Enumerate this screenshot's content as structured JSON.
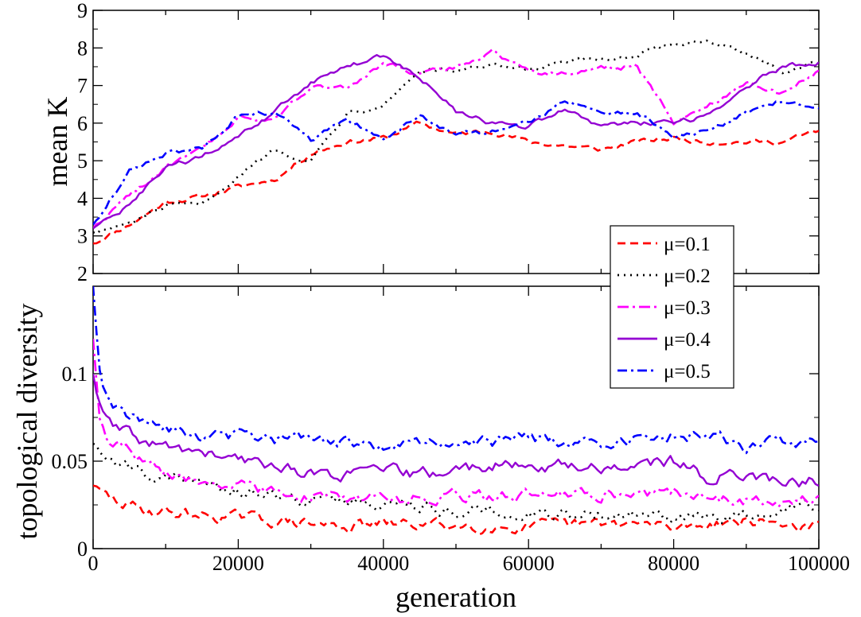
{
  "chart_data": [
    {
      "type": "line",
      "panel": "top",
      "title": "",
      "xlabel": "",
      "ylabel": "mean K",
      "xlim": [
        0,
        100000
      ],
      "ylim": [
        2,
        9
      ],
      "x_ticks": [
        0,
        20000,
        40000,
        60000,
        80000,
        100000
      ],
      "y_ticks": [
        2,
        3,
        4,
        5,
        6,
        7,
        8,
        9
      ],
      "y_tick_labels": [
        "2",
        "3",
        "4",
        "5",
        "6",
        "7",
        "8",
        "9"
      ],
      "x": [
        0,
        5000,
        10000,
        15000,
        20000,
        25000,
        30000,
        35000,
        40000,
        45000,
        50000,
        55000,
        60000,
        65000,
        70000,
        75000,
        80000,
        85000,
        90000,
        95000,
        100000
      ],
      "series": [
        {
          "name": "μ=0.1",
          "color": "#ff0000",
          "dash": "10,6",
          "values": [
            2.8,
            3.3,
            3.9,
            4.05,
            4.3,
            4.5,
            5.2,
            5.5,
            5.6,
            6.0,
            5.7,
            5.8,
            5.5,
            5.4,
            5.3,
            5.5,
            5.6,
            5.5,
            5.5,
            5.5,
            5.8
          ]
        },
        {
          "name": "μ=0.2",
          "color": "#000000",
          "dash": "2,6",
          "values": [
            3.1,
            3.3,
            3.8,
            3.8,
            4.6,
            5.3,
            5.0,
            6.3,
            6.5,
            7.4,
            7.4,
            7.5,
            7.4,
            7.6,
            7.7,
            7.8,
            8.1,
            8.2,
            7.8,
            7.4,
            7.6
          ]
        },
        {
          "name": "μ=0.3",
          "color": "#ff00ff",
          "dash": "14,5,3,5",
          "values": [
            3.2,
            4.1,
            4.8,
            5.3,
            6.1,
            6.1,
            7.0,
            6.9,
            7.6,
            7.3,
            7.5,
            7.9,
            7.4,
            7.3,
            7.5,
            7.5,
            6.0,
            6.5,
            7.1,
            6.8,
            7.4
          ]
        },
        {
          "name": "μ=0.4",
          "color": "#9400d3",
          "dash": "",
          "values": [
            3.2,
            3.8,
            4.8,
            5.1,
            5.6,
            6.3,
            7.1,
            7.5,
            7.8,
            7.2,
            6.3,
            6.0,
            5.9,
            6.4,
            5.9,
            6.0,
            6.0,
            6.2,
            7.0,
            7.5,
            7.6
          ]
        },
        {
          "name": "μ=0.5",
          "color": "#0000ff",
          "dash": "12,5,3,5",
          "values": [
            3.3,
            4.7,
            5.2,
            5.3,
            6.2,
            6.3,
            5.5,
            6.1,
            5.6,
            6.2,
            5.7,
            5.8,
            6.0,
            6.6,
            6.2,
            6.3,
            5.6,
            5.8,
            6.3,
            6.6,
            6.4
          ]
        }
      ]
    },
    {
      "type": "line",
      "panel": "bottom",
      "title": "",
      "xlabel": "generation",
      "ylabel": "topological diversity",
      "xlim": [
        0,
        100000
      ],
      "ylim": [
        0,
        0.15
      ],
      "x_ticks": [
        0,
        20000,
        40000,
        60000,
        80000,
        100000
      ],
      "x_tick_labels": [
        "0",
        "20000",
        "40000",
        "60000",
        "80000",
        "100000"
      ],
      "y_ticks": [
        0,
        0.05,
        0.1
      ],
      "y_tick_labels": [
        "0",
        "0.05",
        "0.1"
      ],
      "x": [
        0,
        1000,
        2500,
        5000,
        7500,
        10000,
        15000,
        20000,
        25000,
        30000,
        35000,
        40000,
        45000,
        50000,
        55000,
        60000,
        65000,
        70000,
        75000,
        80000,
        85000,
        90000,
        95000,
        100000
      ],
      "series": [
        {
          "name": "μ=0.1",
          "color": "#ff0000",
          "dash": "10,6",
          "values": [
            0.036,
            0.032,
            0.028,
            0.024,
            0.022,
            0.021,
            0.019,
            0.018,
            0.016,
            0.014,
            0.013,
            0.014,
            0.014,
            0.013,
            0.013,
            0.012,
            0.013,
            0.014,
            0.014,
            0.012,
            0.015,
            0.016,
            0.014,
            0.012
          ]
        },
        {
          "name": "μ=0.2",
          "color": "#000000",
          "dash": "2,6",
          "values": [
            0.06,
            0.057,
            0.05,
            0.046,
            0.043,
            0.041,
            0.037,
            0.034,
            0.03,
            0.028,
            0.027,
            0.026,
            0.024,
            0.022,
            0.021,
            0.021,
            0.02,
            0.02,
            0.019,
            0.017,
            0.017,
            0.018,
            0.02,
            0.025
          ]
        },
        {
          "name": "μ=0.3",
          "color": "#ff00ff",
          "dash": "14,5,3,5",
          "values": [
            0.12,
            0.07,
            0.06,
            0.055,
            0.047,
            0.043,
            0.038,
            0.035,
            0.033,
            0.03,
            0.029,
            0.028,
            0.029,
            0.03,
            0.03,
            0.031,
            0.032,
            0.031,
            0.031,
            0.033,
            0.029,
            0.028,
            0.028,
            0.03
          ]
        },
        {
          "name": "μ=0.4",
          "color": "#9400d3",
          "dash": "",
          "values": [
            0.1,
            0.08,
            0.07,
            0.065,
            0.06,
            0.058,
            0.055,
            0.05,
            0.048,
            0.043,
            0.042,
            0.045,
            0.042,
            0.045,
            0.048,
            0.046,
            0.048,
            0.046,
            0.048,
            0.05,
            0.04,
            0.044,
            0.037,
            0.039
          ]
        },
        {
          "name": "μ=0.5",
          "color": "#0000ff",
          "dash": "12,5,3,5",
          "values": [
            0.15,
            0.1,
            0.085,
            0.077,
            0.07,
            0.068,
            0.064,
            0.064,
            0.062,
            0.062,
            0.06,
            0.058,
            0.06,
            0.062,
            0.061,
            0.063,
            0.062,
            0.06,
            0.061,
            0.065,
            0.065,
            0.058,
            0.062,
            0.06
          ]
        }
      ]
    }
  ],
  "legend": {
    "placement": "right, between panels",
    "entries": [
      "μ=0.1",
      "μ=0.2",
      "μ=0.3",
      "μ=0.4",
      "μ=0.5"
    ]
  }
}
